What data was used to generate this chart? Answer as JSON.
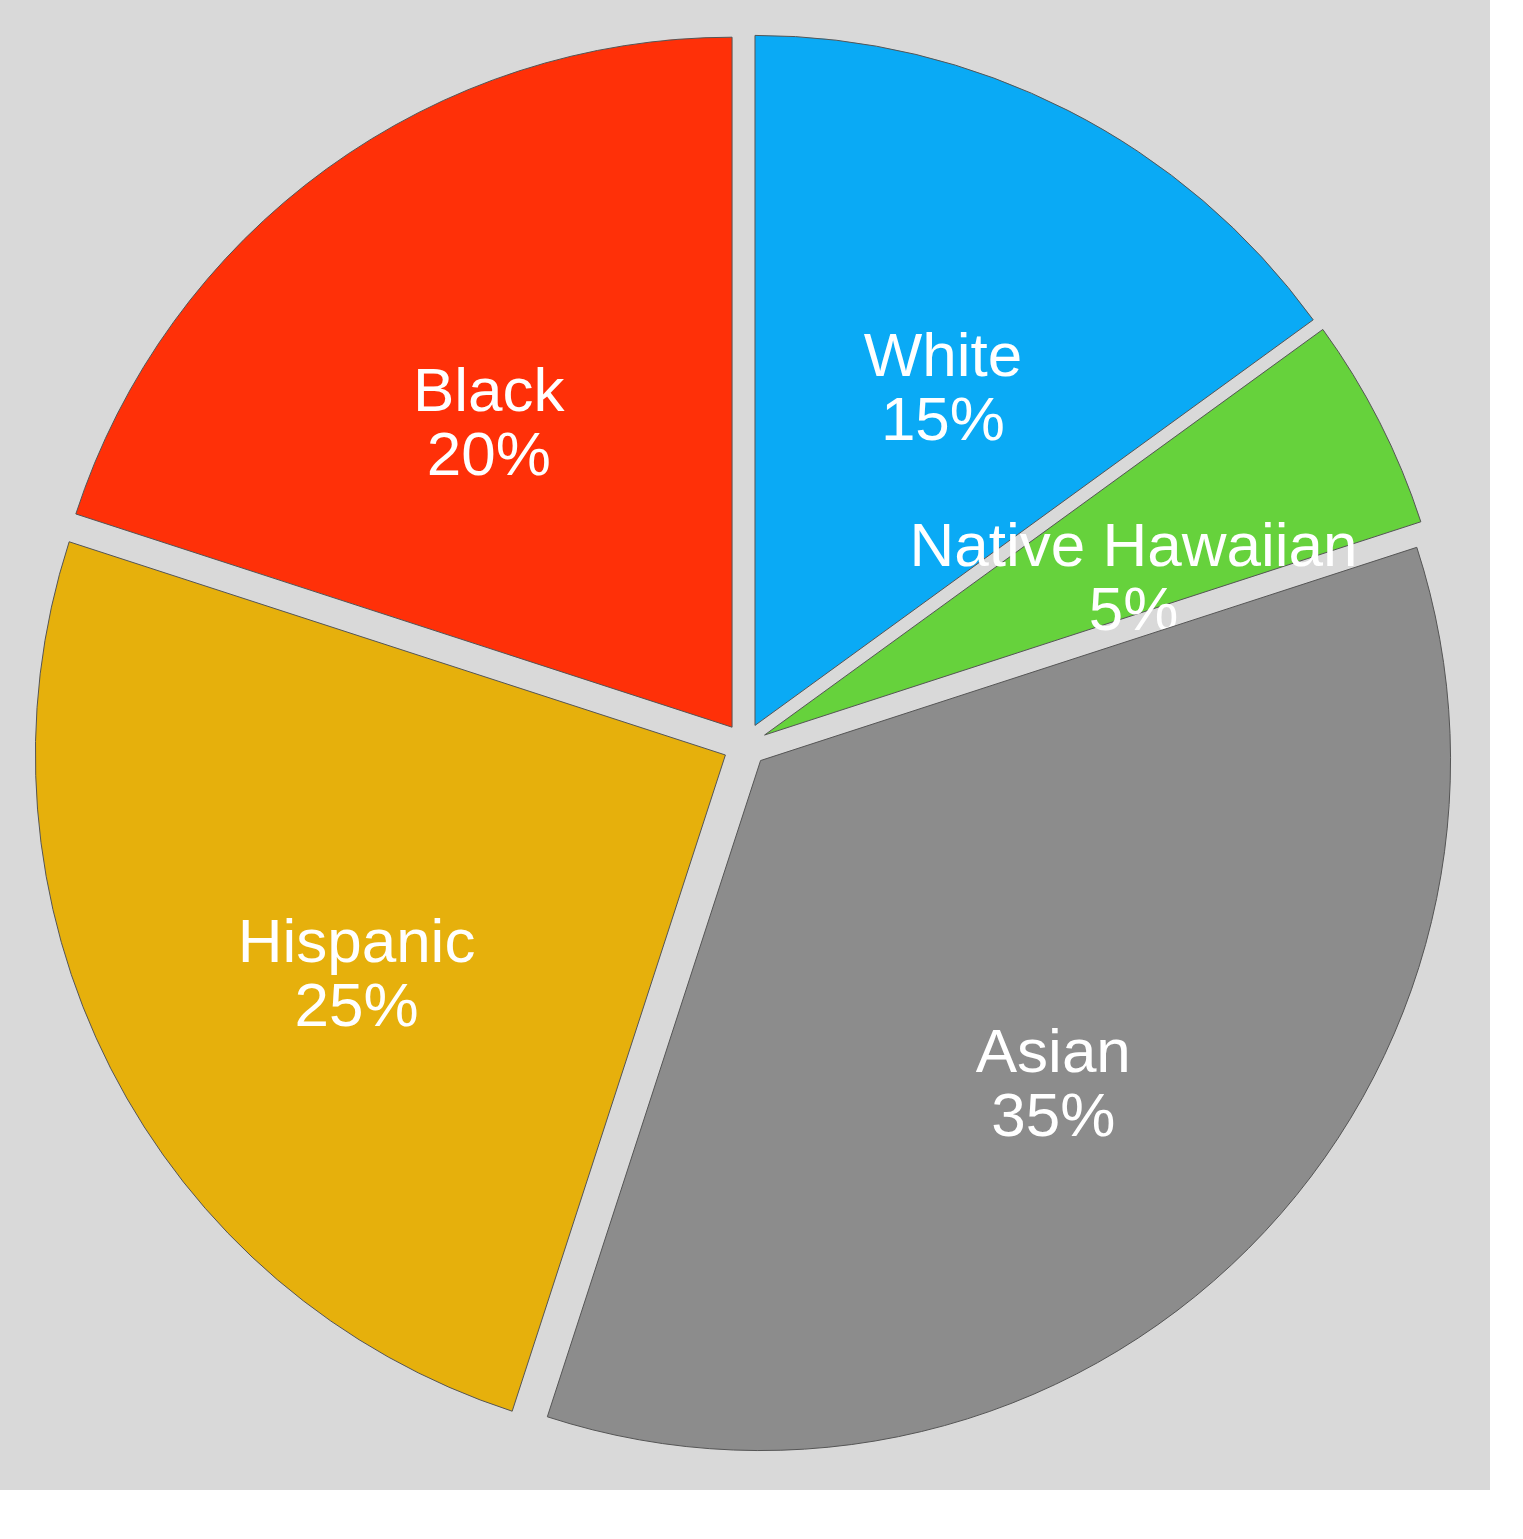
{
  "chart_data": {
    "type": "pie",
    "categories": [
      "White",
      "Native Hawaiian",
      "Asian",
      "Hispanic",
      "Black"
    ],
    "values": [
      15,
      5,
      35,
      25,
      20
    ],
    "value_labels": [
      "15%",
      "5%",
      "35%",
      "25%",
      "20%"
    ],
    "colors": [
      "#0aaaf5",
      "#66d23c",
      "#8c8c8c",
      "#e6b00c",
      "#ff3008"
    ]
  }
}
